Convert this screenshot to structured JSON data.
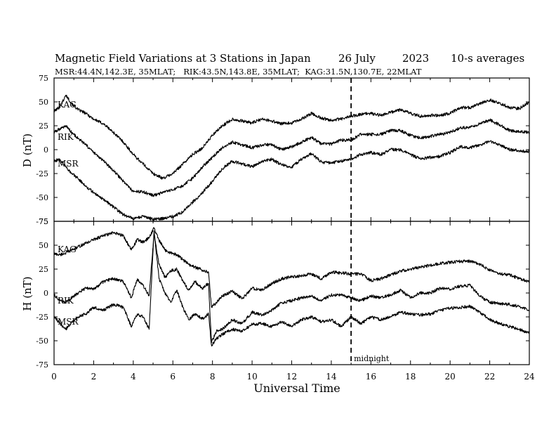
{
  "header": {
    "title": "Magnetic Field Variations at 3 Stations in Japan",
    "date": "26 July",
    "year": "2023",
    "resolution": "10-s averages",
    "stations_line": "MSR:44.4N,142.3E, 35MLAT;   RIK:43.5N,143.8E, 35MLAT;  KAG:31.5N,130.7E, 22MLAT"
  },
  "chart_data": [
    {
      "type": "line",
      "ylabel": "D (nT)",
      "xlim": [
        0,
        24
      ],
      "ylim": [
        -75,
        75
      ],
      "yticks": [
        75,
        50,
        25,
        0,
        -25,
        -50,
        -75
      ],
      "series": [
        {
          "name": "KAG",
          "x": [
            0,
            0.3,
            0.6,
            0.9,
            1.2,
            1.6,
            2.0,
            2.5,
            3.0,
            3.5,
            4.0,
            4.5,
            5.0,
            5.5,
            6.0,
            6.5,
            7.0,
            7.5,
            8.0,
            8.5,
            9.0,
            9.5,
            10.0,
            10.5,
            11.0,
            11.5,
            12.0,
            12.5,
            13.0,
            13.5,
            14.0,
            14.5,
            15.0,
            15.5,
            16.0,
            16.5,
            17.0,
            17.5,
            18.0,
            18.5,
            19.0,
            19.5,
            20.0,
            20.5,
            21.0,
            21.5,
            22.0,
            22.5,
            23.0,
            23.5,
            24.0
          ],
          "y": [
            40,
            45,
            57,
            48,
            42,
            38,
            32,
            27,
            18,
            8,
            -5,
            -15,
            -25,
            -30,
            -25,
            -15,
            -5,
            2,
            15,
            25,
            32,
            30,
            28,
            32,
            30,
            27,
            28,
            32,
            38,
            33,
            31,
            32,
            35,
            37,
            38,
            36,
            39,
            42,
            38,
            35,
            36,
            36,
            38,
            44,
            44,
            48,
            52,
            49,
            44,
            43,
            50
          ]
        },
        {
          "name": "RIK",
          "x": [
            0,
            0.3,
            0.6,
            0.9,
            1.2,
            1.6,
            2.0,
            2.5,
            3.0,
            3.5,
            4.0,
            4.5,
            5.0,
            5.5,
            6.0,
            6.5,
            7.0,
            7.5,
            8.0,
            8.5,
            9.0,
            9.5,
            10.0,
            10.5,
            11.0,
            11.5,
            12.0,
            12.5,
            13.0,
            13.5,
            14.0,
            14.5,
            15.0,
            15.5,
            16.0,
            16.5,
            17.0,
            17.5,
            18.0,
            18.5,
            19.0,
            19.5,
            20.0,
            20.5,
            21.0,
            21.5,
            22.0,
            22.5,
            23.0,
            23.5,
            24.0
          ],
          "y": [
            18,
            22,
            25,
            18,
            12,
            5,
            -3,
            -12,
            -22,
            -33,
            -44,
            -44,
            -48,
            -45,
            -42,
            -38,
            -30,
            -18,
            -8,
            2,
            8,
            5,
            2,
            5,
            5,
            0,
            3,
            8,
            13,
            6,
            6,
            10,
            10,
            16,
            16,
            16,
            20,
            20,
            15,
            12,
            14,
            16,
            18,
            23,
            23,
            27,
            31,
            26,
            20,
            19,
            18
          ]
        },
        {
          "name": "MSR",
          "x": [
            0,
            0.3,
            0.6,
            0.9,
            1.2,
            1.6,
            2.0,
            2.5,
            3.0,
            3.5,
            4.0,
            4.5,
            5.0,
            5.5,
            6.0,
            6.5,
            7.0,
            7.5,
            8.0,
            8.5,
            9.0,
            9.5,
            10.0,
            10.5,
            11.0,
            11.5,
            12.0,
            12.5,
            13.0,
            13.5,
            14.0,
            14.5,
            15.0,
            15.5,
            16.0,
            16.5,
            17.0,
            17.5,
            18.0,
            18.5,
            19.0,
            19.5,
            20.0,
            20.5,
            21.0,
            21.5,
            22.0,
            22.5,
            23.0,
            23.5,
            24.0
          ],
          "y": [
            -12,
            -10,
            -18,
            -25,
            -30,
            -38,
            -45,
            -52,
            -60,
            -68,
            -72,
            -70,
            -73,
            -72,
            -70,
            -65,
            -55,
            -45,
            -33,
            -20,
            -12,
            -15,
            -18,
            -12,
            -10,
            -16,
            -18,
            -10,
            -4,
            -13,
            -14,
            -12,
            -10,
            -5,
            -3,
            -5,
            0,
            0,
            -5,
            -10,
            -8,
            -7,
            -3,
            3,
            2,
            5,
            9,
            5,
            0,
            -1,
            -2
          ]
        }
      ]
    },
    {
      "type": "line",
      "ylabel": "H (nT)",
      "xlabel": "Universal Time",
      "xlim": [
        0,
        24
      ],
      "ylim": [
        -75,
        75
      ],
      "yticks": [
        75,
        50,
        25,
        0,
        -25,
        -50,
        -75
      ],
      "xticks": [
        0,
        2,
        4,
        6,
        8,
        10,
        12,
        14,
        16,
        18,
        20,
        22,
        24
      ],
      "annotation": {
        "x": 15,
        "label": "midnight"
      },
      "series": [
        {
          "name": "KAG",
          "x": [
            0,
            0.3,
            0.6,
            0.9,
            1.2,
            1.6,
            2.0,
            2.5,
            3.0,
            3.5,
            3.9,
            4.2,
            4.5,
            4.8,
            5.05,
            5.3,
            5.6,
            5.9,
            6.2,
            6.5,
            6.8,
            7.1,
            7.5,
            7.8,
            7.95,
            8.2,
            8.5,
            9.0,
            9.5,
            10.0,
            10.5,
            11.0,
            11.5,
            12.0,
            12.5,
            13.0,
            13.5,
            14.0,
            14.5,
            15.0,
            15.5,
            16.0,
            16.5,
            17.0,
            17.5,
            18.0,
            18.5,
            19.0,
            19.5,
            20.0,
            20.5,
            21.0,
            21.5,
            22.0,
            22.5,
            23.0,
            23.5,
            24.0
          ],
          "y": [
            41,
            40,
            42,
            45,
            48,
            52,
            56,
            60,
            63,
            60,
            45,
            56,
            53,
            58,
            68,
            55,
            45,
            42,
            40,
            35,
            30,
            27,
            24,
            22,
            -15,
            -10,
            -3,
            2,
            -6,
            5,
            3,
            10,
            15,
            17,
            18,
            20,
            15,
            22,
            21,
            20,
            20,
            13,
            15,
            19,
            23,
            25,
            27,
            29,
            31,
            32,
            33,
            33,
            30,
            24,
            20,
            19,
            15,
            12
          ]
        },
        {
          "name": "RIK",
          "x": [
            0,
            0.3,
            0.6,
            0.9,
            1.2,
            1.6,
            2.0,
            2.5,
            3.0,
            3.5,
            3.9,
            4.2,
            4.5,
            4.8,
            5.05,
            5.3,
            5.6,
            5.9,
            6.2,
            6.5,
            6.8,
            7.1,
            7.5,
            7.8,
            7.95,
            8.2,
            8.5,
            9.0,
            9.5,
            10.0,
            10.5,
            11.0,
            11.5,
            12.0,
            12.5,
            13.0,
            13.5,
            14.0,
            14.5,
            15.0,
            15.5,
            16.0,
            16.5,
            17.0,
            17.5,
            18.0,
            18.5,
            19.0,
            19.5,
            20.0,
            20.5,
            21.0,
            21.5,
            22.0,
            22.5,
            23.0,
            23.5,
            24.0
          ],
          "y": [
            -2,
            -8,
            -10,
            -5,
            0,
            5,
            4,
            12,
            15,
            12,
            -5,
            14,
            8,
            -3,
            62,
            30,
            16,
            23,
            25,
            13,
            3,
            12,
            5,
            10,
            -52,
            -40,
            -38,
            -28,
            -32,
            -20,
            -23,
            -18,
            -10,
            -8,
            -5,
            -3,
            -8,
            -2,
            -2,
            -5,
            -8,
            -3,
            -5,
            -2,
            3,
            -5,
            0,
            0,
            5,
            4,
            7,
            8,
            -3,
            -10,
            -11,
            -12,
            -14,
            -18
          ]
        },
        {
          "name": "MSR",
          "x": [
            0,
            0.3,
            0.6,
            0.9,
            1.2,
            1.6,
            2.0,
            2.5,
            3.0,
            3.5,
            3.9,
            4.2,
            4.5,
            4.8,
            5.05,
            5.3,
            5.6,
            5.9,
            6.2,
            6.5,
            6.8,
            7.1,
            7.5,
            7.8,
            7.95,
            8.2,
            8.5,
            9.0,
            9.5,
            10.0,
            10.5,
            11.0,
            11.5,
            12.0,
            12.5,
            13.0,
            13.5,
            14.0,
            14.5,
            15.0,
            15.5,
            16.0,
            16.5,
            17.0,
            17.5,
            18.0,
            18.5,
            19.0,
            19.5,
            20.0,
            20.5,
            21.0,
            21.5,
            22.0,
            22.5,
            23.0,
            23.5,
            24.0
          ],
          "y": [
            -24,
            -32,
            -38,
            -30,
            -25,
            -22,
            -15,
            -18,
            -12,
            -15,
            -35,
            -22,
            -25,
            -38,
            65,
            15,
            0,
            -10,
            3,
            -15,
            -28,
            -22,
            -27,
            -22,
            -55,
            -48,
            -43,
            -38,
            -40,
            -33,
            -32,
            -35,
            -30,
            -35,
            -28,
            -25,
            -30,
            -28,
            -35,
            -25,
            -32,
            -25,
            -28,
            -25,
            -20,
            -22,
            -23,
            -22,
            -18,
            -16,
            -15,
            -14,
            -20,
            -28,
            -32,
            -35,
            -38,
            -42
          ]
        }
      ]
    }
  ]
}
